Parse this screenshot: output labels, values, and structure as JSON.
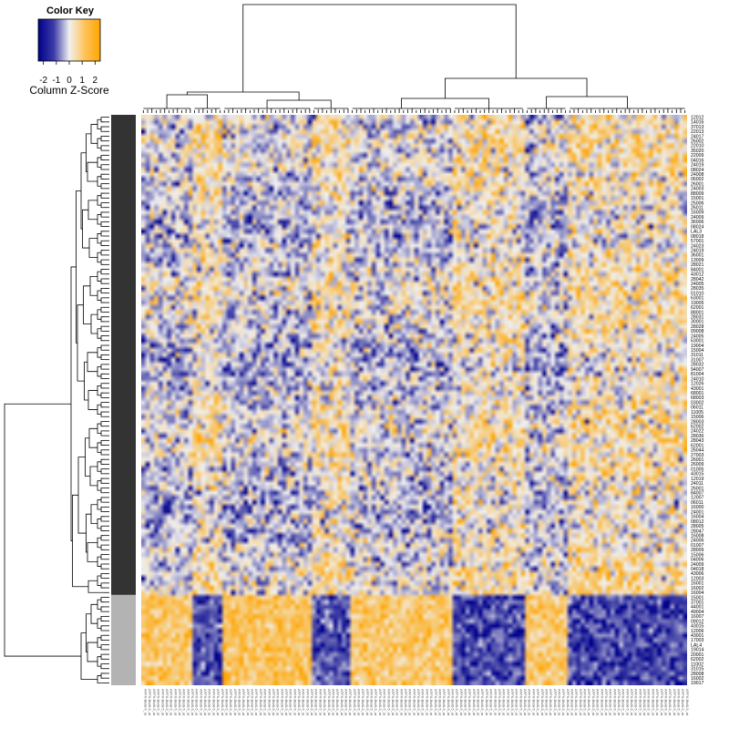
{
  "chart_data": {
    "type": "heatmap",
    "color_key": {
      "title": "Color Key",
      "label": "Column Z-Score",
      "ticks": [
        "-2",
        "-1",
        "0",
        "1",
        "2"
      ],
      "range": [
        -2.4,
        2.4
      ],
      "colors": [
        "#00008b",
        "#f0f0f0",
        "#ffa500"
      ]
    },
    "group_bar_colors": {
      "group_a": "#333333",
      "group_b": "#b3b3b3"
    },
    "group_a_rows": 101,
    "row_labels": [
      "12012",
      "14016",
      "37013",
      "22013",
      "24017",
      "26002",
      "22010",
      "35020",
      "22009",
      "04016",
      "24019",
      "08024",
      "24008",
      "06002",
      "26001",
      "24003",
      "88009",
      "15001",
      "25006",
      "26011",
      "16009",
      "24009",
      "36006",
      "08024",
      "LAL3",
      "08018",
      "57001",
      "24023",
      "24019",
      "36001",
      "13009",
      "28021",
      "84001",
      "43012",
      "28042",
      "24005",
      "28035",
      "01010",
      "63001",
      "19005",
      "62001",
      "88001",
      "28031",
      "30001",
      "28028",
      "09008",
      "24005",
      "63001",
      "19004",
      "15004",
      "31011",
      "31007",
      "28032",
      "94007",
      "81004",
      "24010",
      "12026",
      "43001",
      "68001",
      "68003",
      "03002",
      "06011",
      "11005",
      "15006",
      "28003",
      "62002",
      "24022",
      "28036",
      "28043",
      "62001",
      "26044",
      "27003",
      "26001",
      "26009",
      "01005",
      "43015",
      "12019",
      "24011",
      "26001",
      "84007",
      "12007",
      "06011",
      "16000",
      "24001",
      "16004",
      "08012",
      "28005",
      "28047",
      "16008",
      "24006",
      "01007",
      "28009",
      "15006",
      "04006",
      "24009",
      "04018",
      "43006",
      "12003",
      "16001",
      "16002",
      "16004",
      "15001",
      "37001",
      "44001",
      "49004",
      "16007",
      "09012",
      "43015",
      "12006",
      "43001",
      "17003",
      "LAL4",
      "19014",
      "20001",
      "62002",
      "11002",
      "31015",
      "28008",
      "16002",
      "19017"
    ],
    "col_label_text": "AFFX-BioB-5_at",
    "n_columns": 128,
    "column_clusters": [
      12,
      7,
      21,
      9,
      24,
      17,
      10,
      28
    ]
  }
}
